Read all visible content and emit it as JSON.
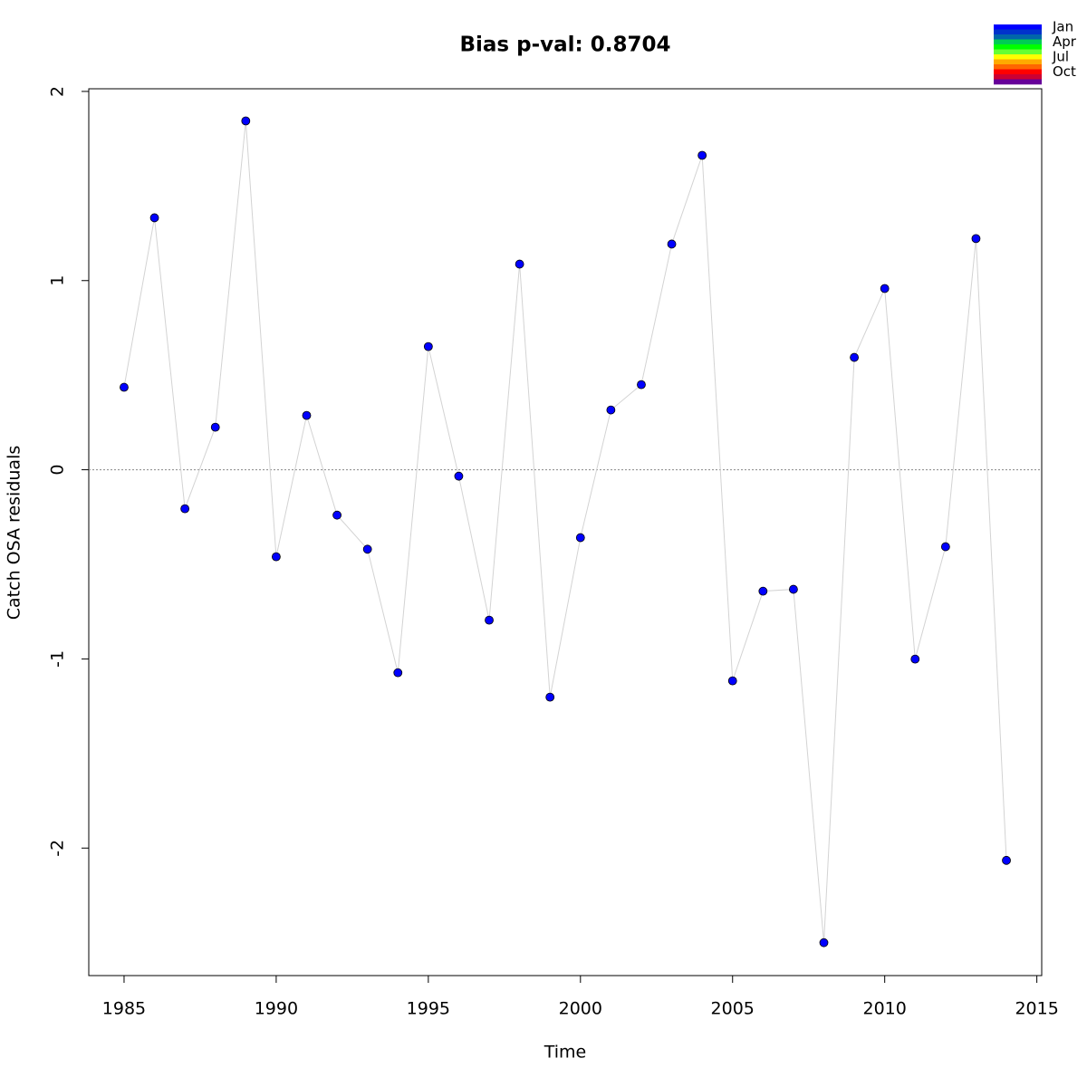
{
  "chart_data": {
    "type": "line",
    "title": "Bias p-val: 0.8704",
    "title_color": "#228b22",
    "x_label": "Time",
    "y_label": "Catch OSA residuals",
    "x": [
      1985,
      1986,
      1987,
      1988,
      1989,
      1990,
      1991,
      1992,
      1993,
      1994,
      1995,
      1996,
      1997,
      1998,
      1999,
      2000,
      2001,
      2002,
      2003,
      2004,
      2005,
      2006,
      2007,
      2008,
      2009,
      2010,
      2011,
      2012,
      2013,
      2014
    ],
    "values": [
      0.436,
      1.332,
      -0.206,
      0.225,
      1.844,
      -0.46,
      0.287,
      -0.24,
      -0.42,
      -1.073,
      0.651,
      -0.034,
      -0.795,
      1.087,
      -1.202,
      -0.359,
      0.316,
      0.45,
      1.193,
      1.662,
      -1.116,
      -0.642,
      -0.632,
      -2.5,
      0.594,
      0.958,
      -1.001,
      -0.407,
      1.222,
      -2.065
    ],
    "line_color": "#d3d3d3",
    "point_color": "#0000ff",
    "reference_line": 0,
    "xlim": [
      1983.84,
      2015.16
    ],
    "ylim": [
      -2.674,
      2.014
    ],
    "xticks": [
      1985,
      1990,
      1995,
      2000,
      2005,
      2010,
      2015
    ],
    "yticks": [
      -2,
      -1,
      0,
      1,
      2
    ],
    "legend": {
      "labels": [
        "Jan",
        "Apr",
        "Jul",
        "Oct"
      ],
      "colors": [
        "#0000ff",
        "#0033cc",
        "#0066aa",
        "#00cc55",
        "#00ff00",
        "#66ff33",
        "#ffff00",
        "#ffaa00",
        "#ff6600",
        "#ff0000",
        "#cc0033",
        "#660099"
      ]
    }
  }
}
